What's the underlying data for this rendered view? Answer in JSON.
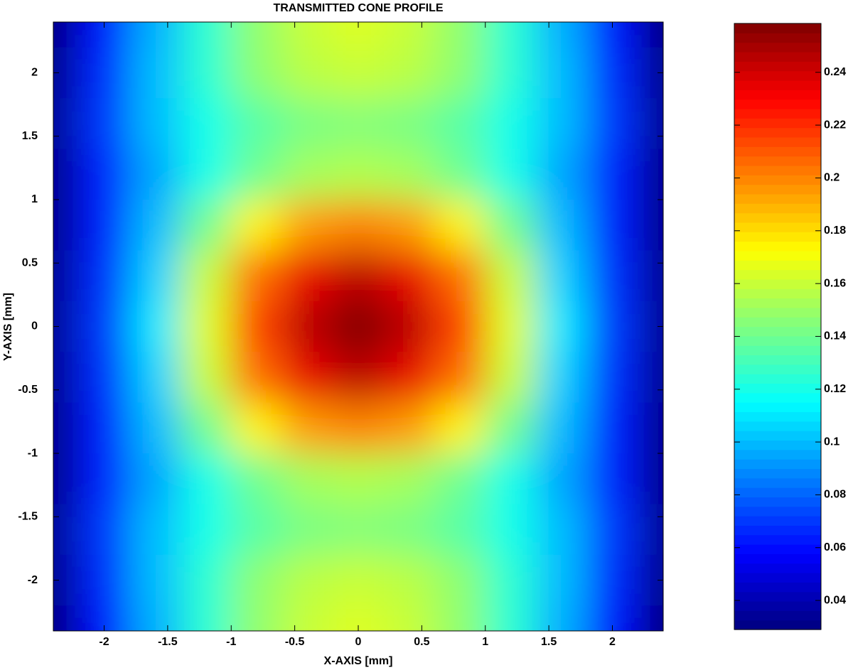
{
  "chart_data": {
    "type": "heatmap",
    "title": "TRANSMITTED CONE PROFILE",
    "xlabel": "X-AXIS [mm]",
    "ylabel": "Y-AXIS [mm]",
    "x": [
      -2.4,
      -2.0,
      -1.6,
      -1.2,
      -0.8,
      -0.4,
      0,
      0.4,
      0.8,
      1.2,
      1.6,
      2.0,
      2.4
    ],
    "y": [
      2.4,
      2.0,
      1.6,
      1.2,
      0.8,
      0.4,
      0,
      -0.4,
      -0.8,
      -1.2,
      -1.6,
      -2.0,
      -2.4
    ],
    "values": [
      [
        0.03,
        0.063,
        0.097,
        0.125,
        0.148,
        0.16,
        0.165,
        0.16,
        0.148,
        0.125,
        0.097,
        0.063,
        0.03
      ],
      [
        0.033,
        0.067,
        0.1,
        0.125,
        0.147,
        0.157,
        0.16,
        0.157,
        0.147,
        0.125,
        0.1,
        0.067,
        0.033
      ],
      [
        0.035,
        0.07,
        0.1,
        0.12,
        0.135,
        0.143,
        0.145,
        0.143,
        0.135,
        0.12,
        0.1,
        0.07,
        0.035
      ],
      [
        0.033,
        0.065,
        0.095,
        0.12,
        0.14,
        0.152,
        0.155,
        0.152,
        0.14,
        0.12,
        0.095,
        0.065,
        0.033
      ],
      [
        0.033,
        0.065,
        0.1,
        0.14,
        0.175,
        0.195,
        0.2,
        0.195,
        0.175,
        0.14,
        0.1,
        0.065,
        0.033
      ],
      [
        0.034,
        0.068,
        0.105,
        0.16,
        0.205,
        0.235,
        0.245,
        0.235,
        0.205,
        0.16,
        0.105,
        0.068,
        0.034
      ],
      [
        0.035,
        0.07,
        0.11,
        0.165,
        0.215,
        0.245,
        0.258,
        0.245,
        0.215,
        0.165,
        0.11,
        0.07,
        0.035
      ],
      [
        0.034,
        0.068,
        0.105,
        0.16,
        0.205,
        0.235,
        0.245,
        0.235,
        0.205,
        0.16,
        0.105,
        0.068,
        0.034
      ],
      [
        0.033,
        0.065,
        0.1,
        0.14,
        0.175,
        0.195,
        0.2,
        0.195,
        0.175,
        0.14,
        0.1,
        0.065,
        0.033
      ],
      [
        0.033,
        0.065,
        0.095,
        0.12,
        0.14,
        0.152,
        0.155,
        0.152,
        0.14,
        0.12,
        0.095,
        0.065,
        0.033
      ],
      [
        0.035,
        0.07,
        0.1,
        0.12,
        0.135,
        0.143,
        0.145,
        0.143,
        0.135,
        0.12,
        0.1,
        0.07,
        0.035
      ],
      [
        0.033,
        0.067,
        0.1,
        0.125,
        0.147,
        0.157,
        0.16,
        0.157,
        0.147,
        0.125,
        0.1,
        0.067,
        0.033
      ],
      [
        0.03,
        0.063,
        0.097,
        0.125,
        0.148,
        0.16,
        0.165,
        0.16,
        0.148,
        0.125,
        0.097,
        0.063,
        0.03
      ]
    ],
    "xlim": [
      -2.4,
      2.4
    ],
    "ylim": [
      -2.4,
      2.4
    ],
    "xticks": [
      -2,
      -1.5,
      -1,
      -0.5,
      0,
      0.5,
      1,
      1.5,
      2
    ],
    "yticks": [
      -2,
      -1.5,
      -1,
      -0.5,
      0,
      0.5,
      1,
      1.5,
      2
    ],
    "colormap": "jet",
    "clim": [
      0.029,
      0.2585
    ],
    "cticks": [
      0.04,
      0.06,
      0.08,
      0.1,
      0.12,
      0.14,
      0.16,
      0.18,
      0.2,
      0.22,
      0.24
    ]
  }
}
